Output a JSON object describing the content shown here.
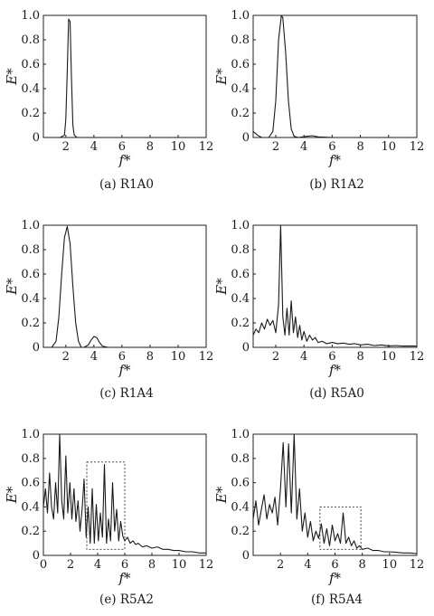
{
  "chart_data": [
    {
      "panel": "a",
      "caption": "(a) R1A0",
      "type": "line",
      "xlabel": "f*",
      "ylabel": "E*",
      "xlim": [
        0.4,
        12
      ],
      "ylim": [
        0,
        1
      ],
      "xticks": [
        2,
        4,
        6,
        8,
        10,
        12
      ],
      "yticks": [
        0,
        0.2,
        0.4,
        0.6,
        0.8,
        1.0
      ],
      "series": [
        {
          "x": [
            0.4,
            1.6,
            1.9,
            2.0,
            2.1,
            2.2,
            2.3,
            2.4,
            2.5,
            2.6,
            2.8,
            3.5,
            5,
            8,
            12
          ],
          "y": [
            0.0,
            0.0,
            0.02,
            0.15,
            0.55,
            0.97,
            0.95,
            0.5,
            0.1,
            0.02,
            0.0,
            0.0,
            0.0,
            0.0,
            0.0
          ]
        }
      ]
    },
    {
      "panel": "b",
      "caption": "(b) R1A2",
      "type": "line",
      "xlabel": "f*",
      "ylabel": "E*",
      "xlim": [
        0.4,
        12
      ],
      "ylim": [
        0,
        1
      ],
      "xticks": [
        2,
        4,
        6,
        8,
        10,
        12
      ],
      "yticks": [
        0,
        0.2,
        0.4,
        0.6,
        0.8,
        1.0
      ],
      "series": [
        {
          "x": [
            0.4,
            0.7,
            1.0,
            1.5,
            1.8,
            2.0,
            2.2,
            2.4,
            2.5,
            2.7,
            2.9,
            3.1,
            3.3,
            3.6,
            4.2,
            4.6,
            5.0,
            6,
            12
          ],
          "y": [
            0.05,
            0.02,
            0.0,
            0.0,
            0.05,
            0.3,
            0.8,
            1.0,
            0.98,
            0.7,
            0.3,
            0.07,
            0.01,
            0.0,
            0.01,
            0.015,
            0.005,
            0.0,
            0.0
          ]
        }
      ]
    },
    {
      "panel": "c",
      "caption": "(c) R1A4",
      "type": "line",
      "xlabel": "f*",
      "ylabel": "E*",
      "xlim": [
        0.4,
        12
      ],
      "ylim": [
        0,
        1
      ],
      "xticks": [
        2,
        4,
        6,
        8,
        10,
        12
      ],
      "yticks": [
        0,
        0.2,
        0.4,
        0.6,
        0.8,
        1.0
      ],
      "series": [
        {
          "x": [
            0.4,
            1.0,
            1.3,
            1.5,
            1.7,
            1.9,
            2.1,
            2.3,
            2.5,
            2.7,
            2.9,
            3.1,
            3.3,
            3.6,
            3.8,
            4.0,
            4.2,
            4.4,
            4.6,
            5.0,
            6,
            12
          ],
          "y": [
            0.0,
            0.0,
            0.05,
            0.25,
            0.6,
            0.9,
            0.99,
            0.85,
            0.5,
            0.2,
            0.05,
            0.0,
            0.0,
            0.02,
            0.06,
            0.09,
            0.08,
            0.04,
            0.01,
            0.0,
            0.0,
            0.0
          ]
        }
      ]
    },
    {
      "panel": "d",
      "caption": "(d) R5A0",
      "type": "line",
      "xlabel": "f*",
      "ylabel": "E*",
      "xlim": [
        0.4,
        12
      ],
      "ylim": [
        0,
        1
      ],
      "xticks": [
        2,
        4,
        6,
        8,
        10,
        12
      ],
      "yticks": [
        0,
        0.2,
        0.4,
        0.6,
        0.8,
        1.0
      ],
      "series": [
        {
          "x": [
            0.4,
            0.6,
            0.8,
            1.0,
            1.2,
            1.4,
            1.6,
            1.8,
            2.0,
            2.2,
            2.35,
            2.5,
            2.65,
            2.8,
            2.95,
            3.1,
            3.25,
            3.4,
            3.55,
            3.7,
            3.85,
            4.0,
            4.2,
            4.4,
            4.6,
            4.8,
            5.0,
            5.3,
            5.6,
            6.0,
            6.4,
            6.8,
            7.2,
            7.6,
            8.0,
            8.5,
            9.0,
            9.5,
            10.0,
            10.5,
            11.0,
            11.5,
            12.0
          ],
          "y": [
            0.1,
            0.15,
            0.12,
            0.2,
            0.15,
            0.23,
            0.18,
            0.22,
            0.12,
            0.35,
            1.0,
            0.25,
            0.1,
            0.32,
            0.1,
            0.38,
            0.12,
            0.25,
            0.08,
            0.18,
            0.06,
            0.13,
            0.05,
            0.1,
            0.06,
            0.08,
            0.04,
            0.05,
            0.03,
            0.04,
            0.03,
            0.035,
            0.025,
            0.03,
            0.02,
            0.025,
            0.015,
            0.02,
            0.012,
            0.015,
            0.01,
            0.012,
            0.01
          ]
        }
      ]
    },
    {
      "panel": "e",
      "caption": "(e) R5A2",
      "type": "line",
      "xlabel": "f*",
      "ylabel": "E*",
      "xlim": [
        0,
        12
      ],
      "ylim": [
        0,
        1
      ],
      "xticks": [
        0,
        2,
        4,
        6,
        8,
        10,
        12
      ],
      "yticks": [
        0,
        0.2,
        0.4,
        0.6,
        0.8,
        1.0
      ],
      "box": {
        "x": [
          3.2,
          6.0
        ],
        "y": [
          0.05,
          0.77
        ]
      },
      "series": [
        {
          "x": [
            0,
            0.15,
            0.3,
            0.45,
            0.6,
            0.75,
            0.9,
            1.05,
            1.2,
            1.35,
            1.5,
            1.65,
            1.8,
            1.95,
            2.1,
            2.25,
            2.4,
            2.55,
            2.7,
            2.85,
            3.0,
            3.15,
            3.3,
            3.45,
            3.6,
            3.75,
            3.9,
            4.05,
            4.2,
            4.35,
            4.5,
            4.65,
            4.8,
            4.95,
            5.1,
            5.25,
            5.4,
            5.55,
            5.7,
            5.85,
            6.0,
            6.2,
            6.4,
            6.6,
            6.8,
            7.0,
            7.3,
            7.6,
            8.0,
            8.4,
            8.8,
            9.2,
            9.6,
            10.0,
            10.5,
            11.0,
            11.5,
            12.0
          ],
          "y": [
            0.4,
            0.55,
            0.35,
            0.68,
            0.4,
            0.3,
            0.6,
            0.35,
            1.0,
            0.45,
            0.3,
            0.82,
            0.35,
            0.6,
            0.3,
            0.55,
            0.28,
            0.45,
            0.2,
            0.38,
            0.63,
            0.15,
            0.4,
            0.1,
            0.55,
            0.1,
            0.42,
            0.12,
            0.35,
            0.15,
            0.75,
            0.1,
            0.3,
            0.12,
            0.6,
            0.2,
            0.38,
            0.12,
            0.28,
            0.16,
            0.12,
            0.15,
            0.1,
            0.12,
            0.09,
            0.1,
            0.07,
            0.08,
            0.06,
            0.07,
            0.05,
            0.05,
            0.04,
            0.04,
            0.03,
            0.03,
            0.02,
            0.02
          ]
        }
      ]
    },
    {
      "panel": "f",
      "caption": "(f) R5A4",
      "type": "line",
      "xlabel": "f*",
      "ylabel": "E*",
      "xlim": [
        0,
        12
      ],
      "ylim": [
        0,
        1
      ],
      "xticks": [
        2,
        4,
        6,
        8,
        10,
        12
      ],
      "yticks": [
        0,
        0.2,
        0.4,
        0.6,
        0.8,
        1.0
      ],
      "box": {
        "x": [
          4.9,
          7.9
        ],
        "y": [
          0.05,
          0.4
        ]
      },
      "series": [
        {
          "x": [
            0,
            0.2,
            0.4,
            0.6,
            0.8,
            1.0,
            1.2,
            1.4,
            1.6,
            1.8,
            2.0,
            2.2,
            2.4,
            2.6,
            2.8,
            3.0,
            3.2,
            3.4,
            3.6,
            3.8,
            4.0,
            4.2,
            4.4,
            4.6,
            4.8,
            5.0,
            5.2,
            5.4,
            5.6,
            5.8,
            6.0,
            6.2,
            6.4,
            6.6,
            6.8,
            7.0,
            7.2,
            7.4,
            7.6,
            7.8,
            8.0,
            8.4,
            8.8,
            9.2,
            9.6,
            10.0,
            10.5,
            11.0,
            11.5,
            12.0
          ],
          "y": [
            0.3,
            0.45,
            0.25,
            0.38,
            0.5,
            0.3,
            0.42,
            0.35,
            0.48,
            0.25,
            0.55,
            0.93,
            0.4,
            0.92,
            0.35,
            1.0,
            0.3,
            0.55,
            0.2,
            0.35,
            0.15,
            0.28,
            0.12,
            0.2,
            0.14,
            0.26,
            0.1,
            0.22,
            0.08,
            0.25,
            0.12,
            0.18,
            0.1,
            0.35,
            0.1,
            0.15,
            0.08,
            0.12,
            0.06,
            0.08,
            0.05,
            0.06,
            0.04,
            0.04,
            0.03,
            0.03,
            0.025,
            0.02,
            0.02,
            0.015
          ]
        }
      ]
    }
  ]
}
